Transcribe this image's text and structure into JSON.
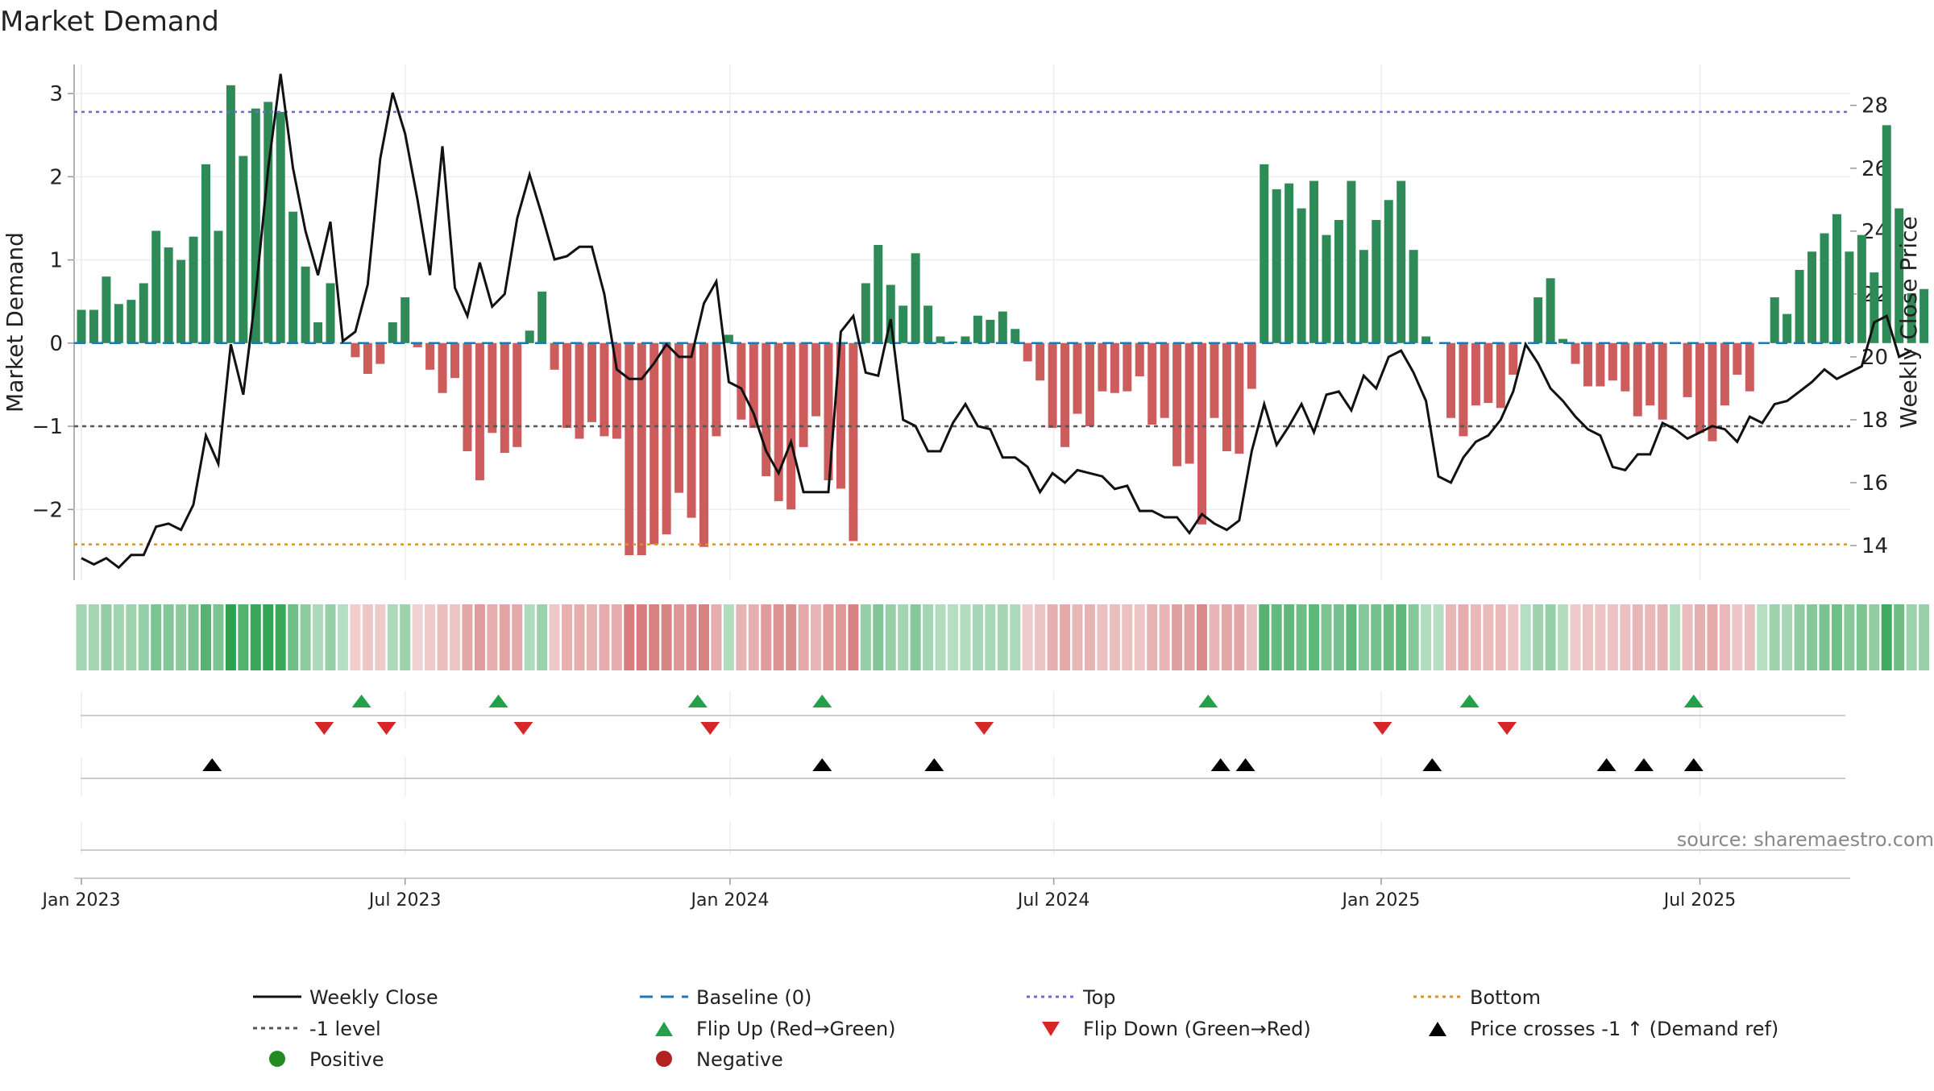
{
  "chart_data": {
    "type": "bar",
    "title": "Market Demand",
    "ylabel": "Market Demand",
    "y2label": "Weekly Close Price",
    "ylim": [
      -2.85,
      3.35
    ],
    "y_ticks": [
      3,
      2,
      1,
      0,
      -1,
      -2
    ],
    "y_tick_labels": [
      "3",
      "2",
      "1",
      "0",
      "−1",
      "−2"
    ],
    "y2lim": [
      12.9,
      29.3
    ],
    "y2_ticks": [
      28,
      26,
      24,
      22,
      20,
      18,
      16,
      14
    ],
    "y2_tick_labels": [
      "28",
      "26",
      "24",
      "22",
      "20",
      "18",
      "16",
      "14"
    ],
    "x_tick_labels": [
      "Jan 2023",
      "Jul 2023",
      "Jan 2024",
      "Jul 2024",
      "Jan 2025",
      "Jul 2025"
    ],
    "x_tick_weeks": [
      0.0,
      26.0,
      52.1,
      78.1,
      104.4,
      130.0
    ],
    "reference_lines": {
      "top": 2.78,
      "bottom": -2.42,
      "minus_one": -1,
      "baseline": 0
    },
    "source": "source: sharemaestro.com",
    "legend_position": "bottom",
    "legend": {
      "weekly_close": "Weekly Close",
      "baseline": "Baseline (0)",
      "top": "Top",
      "bottom": "Bottom",
      "minus_one": "-1 level",
      "flip_up": "Flip Up (Red→Green)",
      "flip_down": "Flip Down (Green→Red)",
      "price_cross": "Price crosses -1 ↑ (Demand ref)",
      "positive": "Positive",
      "negative": "Negative"
    },
    "demand_values": [
      0.4,
      0.4,
      0.8,
      0.47,
      0.52,
      0.72,
      1.35,
      1.15,
      1.0,
      1.28,
      2.15,
      1.35,
      3.1,
      2.25,
      2.82,
      2.9,
      2.78,
      1.58,
      0.92,
      0.25,
      0.72,
      0.0,
      -0.17,
      -0.37,
      -0.25,
      0.25,
      0.55,
      -0.05,
      -0.32,
      -0.6,
      -0.42,
      -1.3,
      -1.65,
      -1.08,
      -1.32,
      -1.25,
      0.15,
      0.62,
      -0.32,
      -1.02,
      -1.15,
      -0.95,
      -1.12,
      -1.15,
      -2.55,
      -2.55,
      -2.42,
      -2.3,
      -1.8,
      -2.1,
      -2.45,
      -1.12,
      0.1,
      -0.92,
      -1.02,
      -1.6,
      -1.9,
      -2.0,
      -1.25,
      -0.88,
      -1.65,
      -1.75,
      -2.38,
      0.72,
      1.18,
      0.7,
      0.45,
      1.08,
      0.45,
      0.08,
      0.02,
      0.08,
      0.33,
      0.28,
      0.38,
      0.17,
      -0.22,
      -0.45,
      -1.02,
      -1.25,
      -0.85,
      -1.0,
      -0.58,
      -0.6,
      -0.58,
      -0.4,
      -0.98,
      -0.9,
      -1.48,
      -1.45,
      -2.18,
      -0.9,
      -1.3,
      -1.33,
      -0.55,
      2.15,
      1.85,
      1.92,
      1.62,
      1.95,
      1.3,
      1.48,
      1.95,
      1.12,
      1.48,
      1.72,
      1.95,
      1.12,
      0.08,
      0.0,
      -0.9,
      -1.12,
      -0.75,
      -0.72,
      -0.78,
      -0.38,
      0.0,
      0.55,
      0.78,
      0.05,
      -0.25,
      -0.52,
      -0.52,
      -0.45,
      -0.58,
      -0.88,
      -0.75,
      -0.92,
      0.0,
      -0.65,
      -1.08,
      -1.18,
      -0.75,
      -0.38,
      -0.58,
      0.0,
      0.55,
      0.35,
      0.88,
      1.1,
      1.32,
      1.55,
      1.1,
      1.3,
      0.85,
      2.62,
      1.62,
      0.6,
      0.65
    ],
    "close_values": [
      13.6,
      13.4,
      13.6,
      13.3,
      13.7,
      13.7,
      14.6,
      14.7,
      14.5,
      15.3,
      17.5,
      16.6,
      20.4,
      18.8,
      22.0,
      26.0,
      29.0,
      26.0,
      24.0,
      22.6,
      24.3,
      20.5,
      20.8,
      22.3,
      26.3,
      28.4,
      27.1,
      25.0,
      22.6,
      26.7,
      22.2,
      21.3,
      23.0,
      21.6,
      22.0,
      24.4,
      25.8,
      24.5,
      23.1,
      23.2,
      23.5,
      23.5,
      22.0,
      19.6,
      19.3,
      19.3,
      19.8,
      20.4,
      20.0,
      20.0,
      21.7,
      22.4,
      19.2,
      19.0,
      18.2,
      17.0,
      16.3,
      17.3,
      15.7,
      15.7,
      15.7,
      20.8,
      21.3,
      19.5,
      19.4,
      21.2,
      18.0,
      17.8,
      17.0,
      17.0,
      17.9,
      18.5,
      17.8,
      17.7,
      16.8,
      16.8,
      16.5,
      15.7,
      16.3,
      16.0,
      16.4,
      16.3,
      16.2,
      15.8,
      15.9,
      15.1,
      15.1,
      14.9,
      14.9,
      14.4,
      15.0,
      14.7,
      14.5,
      14.8,
      17.0,
      18.5,
      17.2,
      17.8,
      18.5,
      17.6,
      18.8,
      18.9,
      18.3,
      19.4,
      19.0,
      20.0,
      20.2,
      19.5,
      18.6,
      16.2,
      16.0,
      16.8,
      17.3,
      17.5,
      18.0,
      18.9,
      20.4,
      19.8,
      19.0,
      18.6,
      18.1,
      17.7,
      17.5,
      16.5,
      16.4,
      16.9,
      16.9,
      17.9,
      17.7,
      17.4,
      17.6,
      17.8,
      17.7,
      17.3,
      18.1,
      17.9,
      18.5,
      18.6,
      18.9,
      19.2,
      19.6,
      19.3,
      19.5,
      19.7,
      21.1,
      21.3,
      20.0,
      20.2
    ],
    "flip_up_weeks": [
      22.5,
      33.5,
      49.5,
      59.5,
      90.5,
      111.5,
      129.5
    ],
    "flip_down_weeks": [
      19.5,
      24.5,
      35.5,
      50.5,
      72.5,
      104.5,
      114.5
    ],
    "price_cross_weeks": [
      10.5,
      59.5,
      68.5,
      91.5,
      93.5,
      108.5,
      122.5,
      125.5,
      129.5
    ]
  }
}
